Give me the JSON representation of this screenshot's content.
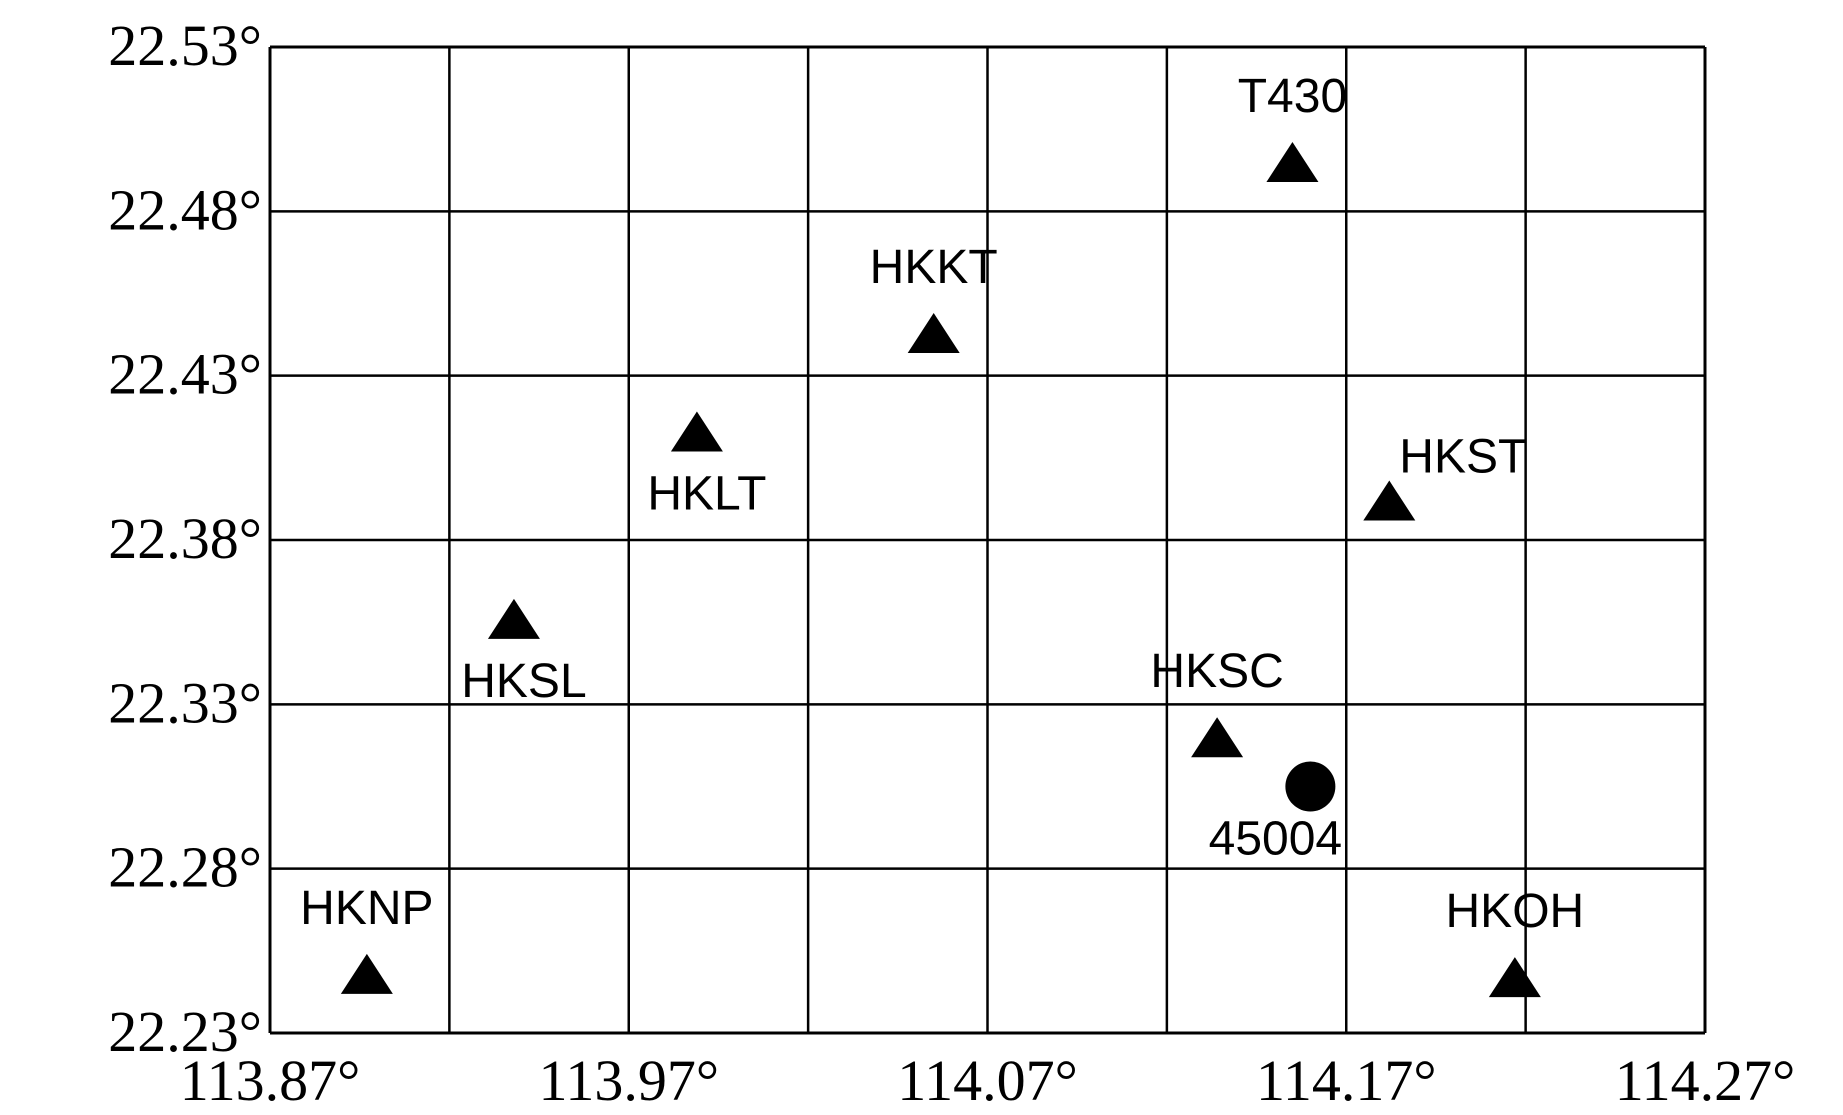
{
  "map": {
    "x_axis": {
      "range": [
        113.87,
        114.27
      ],
      "ticks": [
        {
          "value": 113.87,
          "label": "113.87°"
        },
        {
          "value": 113.97,
          "label": "113.97°"
        },
        {
          "value": 114.07,
          "label": "114.07°"
        },
        {
          "value": 114.17,
          "label": "114.17°"
        },
        {
          "value": 114.27,
          "label": "114.27°"
        }
      ],
      "grid_step": 0.05
    },
    "y_axis": {
      "range": [
        22.23,
        22.53
      ],
      "ticks": [
        {
          "value": 22.53,
          "label": "22.53°"
        },
        {
          "value": 22.48,
          "label": "22.48°"
        },
        {
          "value": 22.43,
          "label": "22.43°"
        },
        {
          "value": 22.38,
          "label": "22.38°"
        },
        {
          "value": 22.33,
          "label": "22.33°"
        },
        {
          "value": 22.28,
          "label": "22.28°"
        },
        {
          "value": 22.23,
          "label": "22.23°"
        }
      ],
      "grid_step": 0.05
    },
    "grid": true,
    "stations": [
      {
        "name": "T430",
        "lon": 114.155,
        "lat": 22.495,
        "marker": "triangle",
        "label_pos": "above"
      },
      {
        "name": "HKKT",
        "lon": 114.055,
        "lat": 22.443,
        "marker": "triangle",
        "label_pos": "above"
      },
      {
        "name": "HKLT",
        "lon": 113.989,
        "lat": 22.413,
        "marker": "triangle",
        "label_pos": "below"
      },
      {
        "name": "HKST",
        "lon": 114.182,
        "lat": 22.392,
        "marker": "triangle",
        "label_pos": "above-right"
      },
      {
        "name": "HKSL",
        "lon": 113.938,
        "lat": 22.356,
        "marker": "triangle",
        "label_pos": "below"
      },
      {
        "name": "HKSC",
        "lon": 114.134,
        "lat": 22.32,
        "marker": "triangle",
        "label_pos": "above"
      },
      {
        "name": "45004",
        "lon": 114.16,
        "lat": 22.305,
        "marker": "circle",
        "label_pos": "below-left"
      },
      {
        "name": "HKNP",
        "lon": 113.897,
        "lat": 22.248,
        "marker": "triangle",
        "label_pos": "above"
      },
      {
        "name": "HKOH",
        "lon": 114.217,
        "lat": 22.247,
        "marker": "triangle",
        "label_pos": "above"
      }
    ],
    "colors": {
      "line": "#000000",
      "marker": "#000000",
      "background": "#ffffff"
    }
  }
}
